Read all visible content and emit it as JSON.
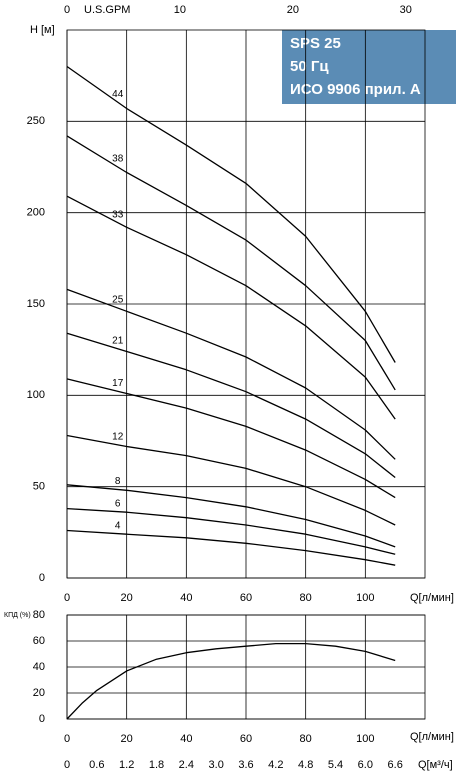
{
  "chart_data": [
    {
      "type": "line",
      "title_lines": [
        "SPS 25",
        "50 Гц",
        "ИСО 9906 прил. А"
      ],
      "ylabel": "H [м]",
      "xlabel": "Q[л/мин]",
      "x2label": "U.S.GPM",
      "x2lim": [
        0,
        31.7
      ],
      "x2ticks": [
        0,
        10,
        20,
        30
      ],
      "x": [
        0,
        20,
        40,
        60,
        80,
        100,
        110
      ],
      "xlim": [
        0,
        120
      ],
      "xticks": [
        0,
        20,
        40,
        60,
        80,
        100
      ],
      "ylim": [
        0,
        300
      ],
      "yticks": [
        0,
        50,
        100,
        150,
        200,
        250
      ],
      "grid": true,
      "series": [
        {
          "name": "44",
          "color": "#000000",
          "values": [
            280,
            257,
            237,
            216,
            187,
            146,
            118
          ]
        },
        {
          "name": "38",
          "color": "#000000",
          "values": [
            242,
            222,
            204,
            185,
            160,
            130,
            103
          ]
        },
        {
          "name": "33",
          "color": "#000000",
          "values": [
            209,
            192,
            177,
            160,
            138,
            110,
            87
          ]
        },
        {
          "name": "25",
          "color": "#000000",
          "values": [
            158,
            146,
            134,
            121,
            104,
            81,
            65
          ]
        },
        {
          "name": "21",
          "color": "#000000",
          "values": [
            134,
            124,
            114,
            102,
            87,
            68,
            55
          ]
        },
        {
          "name": "17",
          "color": "#000000",
          "values": [
            109,
            101,
            93,
            83,
            70,
            54,
            44
          ]
        },
        {
          "name": "12",
          "color": "#000000",
          "values": [
            78,
            72,
            67,
            60,
            50,
            37,
            29
          ]
        },
        {
          "name": "8",
          "color": "#000000",
          "values": [
            51,
            48,
            44,
            39,
            32,
            23,
            17
          ]
        },
        {
          "name": "6",
          "color": "#000000",
          "values": [
            38,
            36,
            33,
            29,
            24,
            17,
            13
          ]
        },
        {
          "name": "4",
          "color": "#000000",
          "values": [
            26,
            24,
            22,
            19,
            15,
            10,
            7
          ]
        }
      ]
    },
    {
      "type": "line",
      "ylabel": "КПД (%)",
      "xlabel": "Q[л/мин]",
      "x3label": "Q[м³/ч]",
      "x3lim": [
        0,
        7.2
      ],
      "x3ticks": [
        0,
        0.6,
        1.2,
        1.8,
        2.4,
        {
          "value": 3,
          "label": "3.0"
        },
        3.6,
        4.2,
        4.8,
        5.4,
        {
          "value": 6,
          "label": "6.0"
        },
        6.6
      ],
      "x": [
        0,
        5,
        10,
        20,
        30,
        40,
        50,
        60,
        70,
        80,
        90,
        100,
        110
      ],
      "xlim": [
        0,
        120
      ],
      "xticks": [
        0,
        20,
        40,
        60,
        80,
        100
      ],
      "ylim": [
        0,
        80
      ],
      "yticks": [
        0,
        20,
        40,
        60,
        80
      ],
      "grid": true,
      "series": [
        {
          "color": "#000000",
          "values": [
            0,
            12,
            22,
            37,
            46,
            51,
            54,
            56,
            58,
            58,
            56,
            52,
            45
          ]
        }
      ]
    }
  ]
}
